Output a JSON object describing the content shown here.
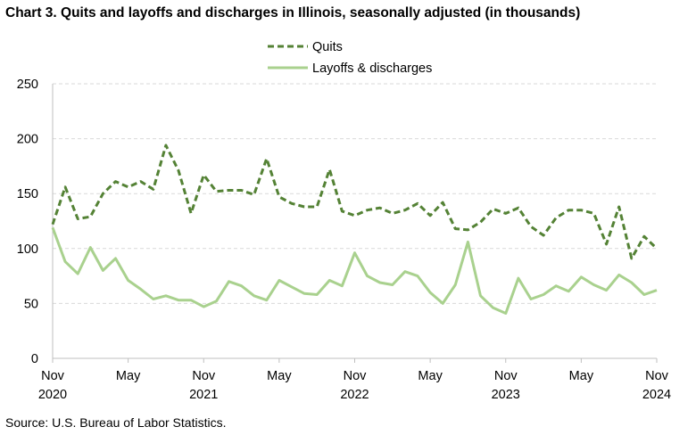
{
  "title": "Chart 3. Quits and layoffs and discharges in Illinois, seasonally adjusted (in thousands)",
  "source": "Source: U.S. Bureau of Labor Statistics.",
  "chart_data": {
    "type": "line",
    "title": "Chart 3. Quits and layoffs and discharges in Illinois, seasonally adjusted (in thousands)",
    "xlabel": "",
    "ylabel": "",
    "ylim": [
      0,
      250
    ],
    "yticks": [
      0,
      50,
      100,
      150,
      200,
      250
    ],
    "grid": "horizontal dashed",
    "legend_position": "top-center",
    "x_tick_labels": [
      {
        "month": "Nov",
        "year": "2020",
        "index": 0
      },
      {
        "month": "May",
        "year": "",
        "index": 6
      },
      {
        "month": "Nov",
        "year": "2021",
        "index": 12
      },
      {
        "month": "May",
        "year": "",
        "index": 18
      },
      {
        "month": "Nov",
        "year": "2022",
        "index": 24
      },
      {
        "month": "May",
        "year": "",
        "index": 30
      },
      {
        "month": "Nov",
        "year": "2023",
        "index": 36
      },
      {
        "month": "May",
        "year": "",
        "index": 42
      },
      {
        "month": "Nov",
        "year": "2024",
        "index": 48
      }
    ],
    "x_start": "Nov 2020",
    "x_end": "Nov 2024",
    "series": [
      {
        "name": "Quits",
        "style": "dashed",
        "color": "#548235",
        "values": [
          122,
          156,
          127,
          129,
          150,
          161,
          156,
          161,
          154,
          194,
          171,
          132,
          167,
          152,
          153,
          153,
          149,
          182,
          147,
          141,
          138,
          138,
          172,
          134,
          130,
          135,
          137,
          132,
          135,
          141,
          130,
          142,
          118,
          117,
          124,
          136,
          132,
          137,
          120,
          112,
          128,
          135,
          135,
          132,
          104,
          138,
          91,
          111,
          100
        ]
      },
      {
        "name": "Layoffs & discharges",
        "style": "solid",
        "color": "#a9d18e",
        "values": [
          119,
          88,
          77,
          101,
          80,
          91,
          71,
          63,
          54,
          57,
          53,
          53,
          47,
          52,
          70,
          66,
          57,
          53,
          71,
          65,
          59,
          58,
          71,
          66,
          96,
          75,
          69,
          67,
          79,
          75,
          60,
          50,
          67,
          106,
          57,
          46,
          41,
          73,
          54,
          58,
          66,
          61,
          74,
          67,
          62,
          76,
          69,
          58,
          62
        ]
      }
    ]
  }
}
